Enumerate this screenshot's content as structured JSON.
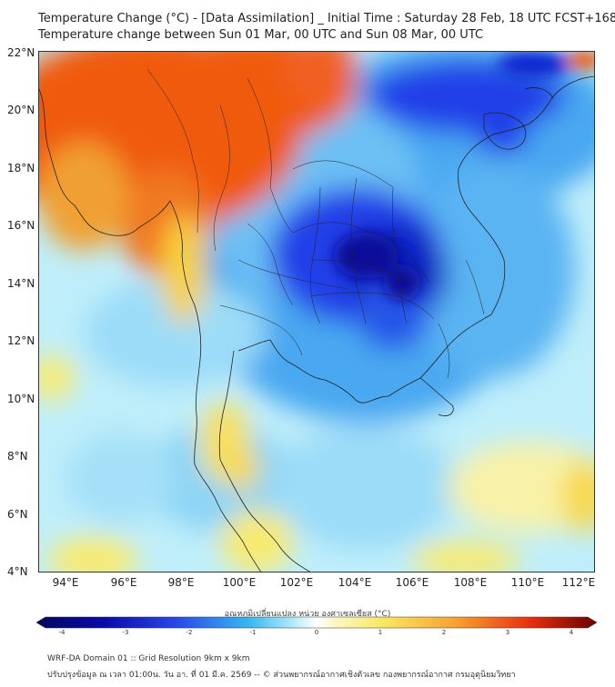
{
  "header": {
    "title_line1": "Temperature Change (°C) - [Data Assimilation] _ Initial Time : Saturday 28 Feb, 18 UTC FCST+168",
    "title_line2": "Temperature change between Sun 01 Mar, 00 UTC and Sun 08 Mar, 00 UTC"
  },
  "map": {
    "lat_labels": [
      "22°N",
      "20°N",
      "18°N",
      "16°N",
      "14°N",
      "12°N",
      "10°N",
      "8°N",
      "6°N",
      "4°N"
    ],
    "lon_labels": [
      "94°E",
      "96°E",
      "98°E",
      "100°E",
      "102°E",
      "104°E",
      "106°E",
      "108°E",
      "110°E",
      "112°E"
    ]
  },
  "colorbar": {
    "title": "อุณหภูมิเปลี่ยนแปลง หน่วย องศาเซลเซียส (°C)",
    "ticks": [
      "-4",
      "-3",
      "-2",
      "-1",
      "0",
      "1",
      "2",
      "3",
      "4"
    ]
  },
  "footer": {
    "line1": "WRF-DA Domain 01 :: Grid Resolution 9km x 9km",
    "line2": "ปรับปรุงข้อมูล ณ เวลา 01:00น. วัน อา. ที่ 01 มี.ค. 2569 -- © ส่วนพยากรณ์อากาศเชิงตัวเลข กองพยากรณ์อากาศ กรมอุตุนิยมวิทยา"
  },
  "colors": {
    "cold_max": "#0a0a9a",
    "cold": "#2040e8",
    "cool": "#4aa8f0",
    "neutral": "#d6f4fc",
    "warm": "#f8ea70",
    "hot": "#f05a10",
    "hot_max": "#7a0000"
  }
}
